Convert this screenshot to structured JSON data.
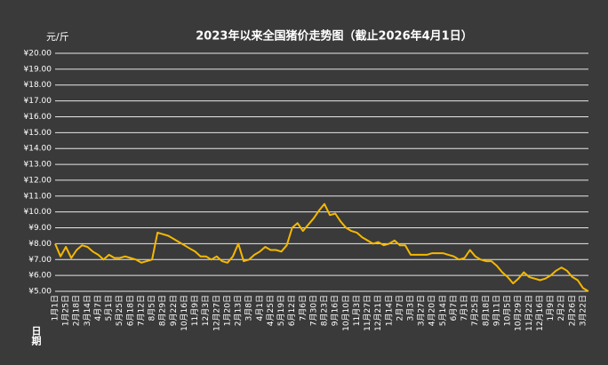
{
  "chart_data": {
    "type": "line",
    "title": "2023年以来全国猪价走势图（截止2026年4月1日）",
    "y_label": "元/斤",
    "x_label": "日期",
    "color": "#f5b800",
    "grid": true,
    "ylim": [
      5,
      20
    ],
    "yticks": [
      {
        "value": 5,
        "label": "¥5.00"
      },
      {
        "value": 6,
        "label": "¥6.00"
      },
      {
        "value": 7,
        "label": "¥7.00"
      },
      {
        "value": 8,
        "label": "¥8.00"
      },
      {
        "value": 9,
        "label": "¥9.00"
      },
      {
        "value": 10,
        "label": "¥10.00"
      },
      {
        "value": 11,
        "label": "¥11.00"
      },
      {
        "value": 12,
        "label": "¥12.00"
      },
      {
        "value": 13,
        "label": "¥13.00"
      },
      {
        "value": 14,
        "label": "¥14.00"
      },
      {
        "value": 15,
        "label": "¥15.00"
      },
      {
        "value": 16,
        "label": "¥16.00"
      },
      {
        "value": 17,
        "label": "¥17.00"
      },
      {
        "value": 18,
        "label": "¥18.00"
      },
      {
        "value": 19,
        "label": "¥19.00"
      },
      {
        "value": 20,
        "label": "¥20.00"
      }
    ],
    "categories": [
      "1月1日",
      null,
      "1月25日",
      null,
      "2月18日",
      null,
      "3月14日",
      null,
      "4月7日",
      null,
      "5月1日",
      null,
      "5月25日",
      null,
      "6月18日",
      null,
      "7月12日",
      null,
      "8月5日",
      null,
      "8月29日",
      null,
      "9月22日",
      null,
      "10月16日",
      null,
      "11月9日",
      null,
      "12月3日",
      null,
      "12月27日",
      null,
      "1月20日",
      null,
      "2月13日",
      null,
      "3月8日",
      null,
      "4月1日",
      null,
      "4月25日",
      null,
      "5月19日",
      null,
      "6月12日",
      null,
      "7月6日",
      null,
      "7月30日",
      null,
      "8月23日",
      null,
      "9月16日",
      null,
      "10月10日",
      null,
      "11月3日",
      null,
      "11月27日",
      null,
      "12月21日",
      null,
      "1月14日",
      null,
      "2月7日",
      null,
      "3月3日",
      null,
      "3月27日",
      null,
      "4月20日",
      null,
      "5月14日",
      null,
      "6月7日",
      null,
      "7月1日",
      null,
      "7月25日",
      null,
      "8月18日",
      null,
      "9月11日",
      null,
      "10月5日",
      null,
      "10月29日",
      null,
      "11月22日",
      null,
      "12月16日",
      null,
      "1月9日",
      null,
      "2月2日",
      null,
      "2月26日",
      null,
      "3月22日",
      null
    ],
    "values": [
      8.0,
      7.2,
      7.8,
      7.1,
      7.6,
      7.9,
      7.8,
      7.5,
      7.3,
      7.0,
      7.3,
      7.1,
      7.1,
      7.2,
      7.1,
      7.0,
      6.8,
      6.9,
      7.0,
      8.7,
      8.6,
      8.5,
      8.3,
      8.1,
      7.9,
      7.7,
      7.5,
      7.2,
      7.2,
      7.0,
      7.2,
      6.9,
      6.8,
      7.2,
      8.0,
      6.9,
      7.0,
      7.3,
      7.5,
      7.8,
      7.6,
      7.6,
      7.5,
      7.9,
      9.0,
      9.3,
      8.8,
      9.2,
      9.6,
      10.1,
      10.5,
      9.8,
      9.9,
      9.4,
      9.0,
      8.8,
      8.7,
      8.4,
      8.2,
      8.0,
      8.1,
      7.9,
      8.0,
      8.2,
      7.9,
      7.9,
      7.3,
      7.3,
      7.3,
      7.3,
      7.4,
      7.4,
      7.4,
      7.3,
      7.2,
      7.0,
      7.1,
      7.6,
      7.2,
      7.0,
      6.9,
      6.9,
      6.6,
      6.2,
      5.9,
      5.5,
      5.8,
      6.2,
      5.9,
      5.8,
      5.7,
      5.8,
      6.0,
      6.3,
      6.5,
      6.3,
      5.9,
      5.7,
      5.2,
      5.0
    ]
  }
}
